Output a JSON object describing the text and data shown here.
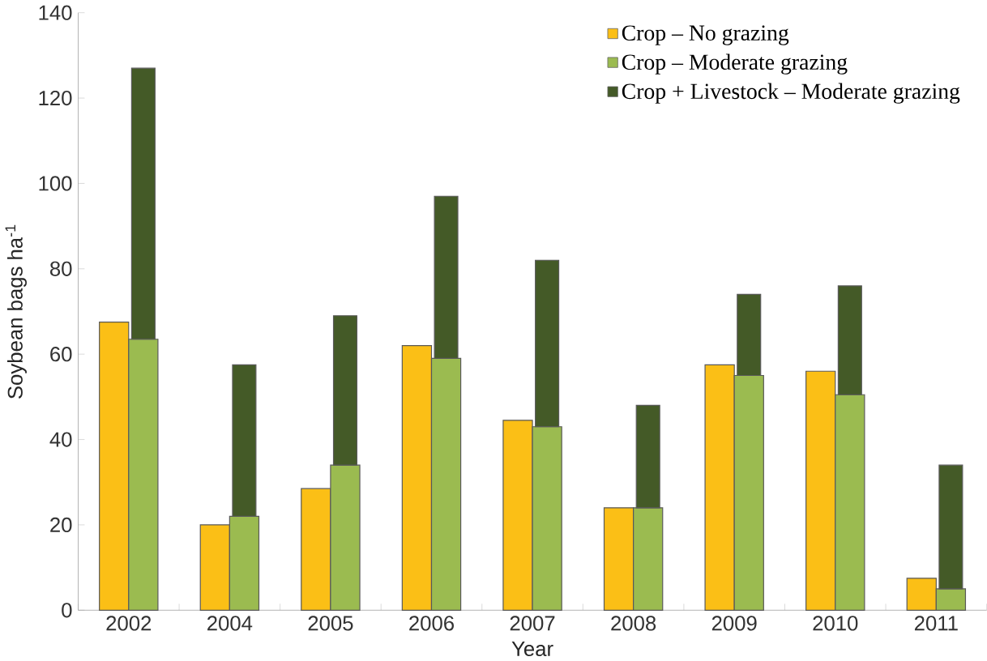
{
  "chart_data": {
    "type": "bar",
    "xlabel": "Year",
    "ylabel": "Soybean bags ha$^{-1}$",
    "categories": [
      "2002",
      "2004",
      "2005",
      "2006",
      "2007",
      "2008",
      "2009",
      "2010",
      "2011"
    ],
    "series": [
      {
        "name": "Crop – No grazing",
        "color": "#fbbf16",
        "values": [
          67.5,
          20,
          28.5,
          62,
          44.5,
          24,
          57.5,
          56,
          7.5
        ]
      },
      {
        "name": "Crop – Moderate grazing",
        "color": "#9bbb50",
        "values": [
          63.5,
          22,
          34,
          59,
          43,
          24,
          55,
          50.5,
          5
        ]
      },
      {
        "name": "Crop + Livestock  – Moderate grazing",
        "color": "#445a27",
        "base": [
          63.5,
          22,
          34,
          59,
          43,
          24,
          55,
          50.5,
          5
        ],
        "values": [
          63.5,
          35.5,
          35,
          38,
          39,
          24,
          19,
          25.5,
          29
        ]
      }
    ],
    "ylim": [
      0,
      140
    ],
    "yticks": [
      0,
      20,
      40,
      60,
      80,
      100,
      120,
      140
    ],
    "grid": false,
    "legend": "top right"
  }
}
